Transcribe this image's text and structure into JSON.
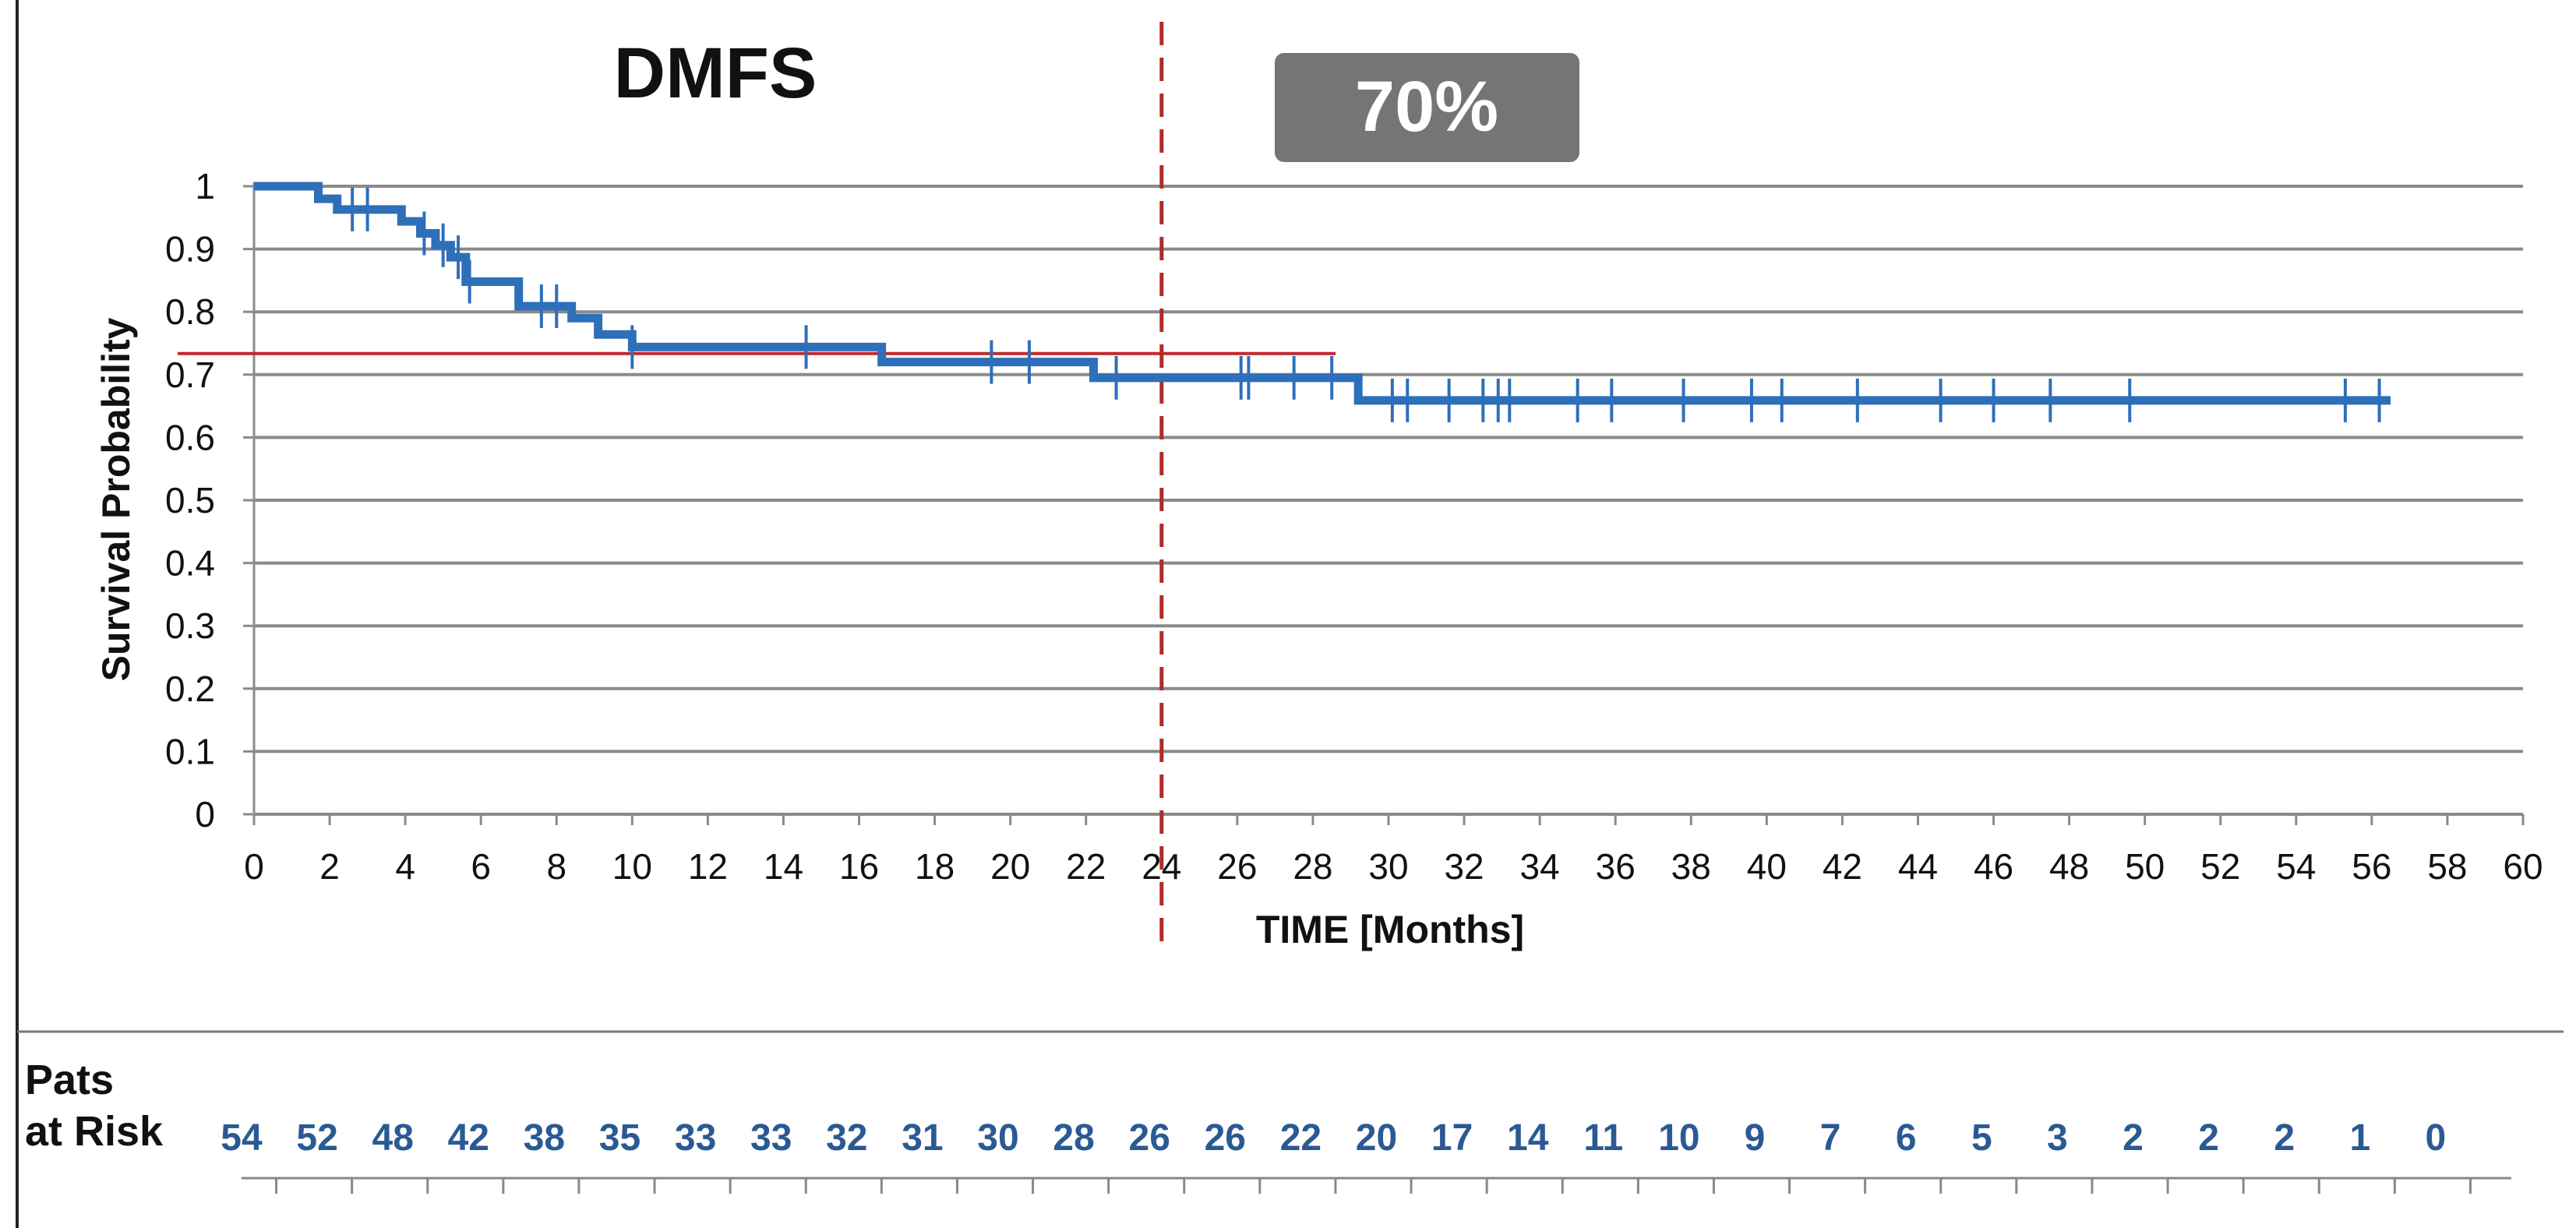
{
  "chart_data": {
    "type": "line",
    "step": true,
    "title": "DMFS",
    "annotation": "70%",
    "xlabel": "TIME [Months]",
    "ylabel": "Survival Probability",
    "xlim": [
      0,
      60
    ],
    "ylim": [
      0,
      1
    ],
    "x_ticks": [
      0,
      2,
      4,
      6,
      8,
      10,
      12,
      14,
      16,
      18,
      20,
      22,
      24,
      26,
      28,
      30,
      32,
      34,
      36,
      38,
      40,
      42,
      44,
      46,
      48,
      50,
      52,
      54,
      56,
      58,
      60
    ],
    "y_ticks": [
      0,
      0.1,
      0.2,
      0.3,
      0.4,
      0.5,
      0.6,
      0.7,
      0.8,
      0.9,
      1
    ],
    "grid": "horizontal",
    "reference_line_y": 0.7,
    "reference_line_x": 24,
    "series": [
      {
        "color": "#2e6fba",
        "x": [
          0,
          1.5,
          1.7,
          2.2,
          3.4,
          3.9,
          4.4,
          4.8,
          5.2,
          5.6,
          6.8,
          7.0,
          8.4,
          9.1,
          10.0,
          16.6,
          22.2,
          29.2,
          56.5
        ],
        "y": [
          1.0,
          1.0,
          0.98,
          0.963,
          0.963,
          0.944,
          0.925,
          0.906,
          0.887,
          0.848,
          0.848,
          0.809,
          0.79,
          0.764,
          0.744,
          0.72,
          0.695,
          0.659,
          0.659
        ],
        "censored_x": [
          2.6,
          3.0,
          4.5,
          5.0,
          5.4,
          5.7,
          7.6,
          8.0,
          10.0,
          14.6,
          19.5,
          20.5,
          22.8,
          26.1,
          26.3,
          27.5,
          28.5,
          30.1,
          30.5,
          31.6,
          32.5,
          32.9,
          33.2,
          35.0,
          35.9,
          37.8,
          39.6,
          40.4,
          42.4,
          44.6,
          46.0,
          47.5,
          49.6,
          55.3,
          56.2
        ]
      }
    ],
    "at_risk": {
      "label_line1": "Pats",
      "label_line2": "at Risk",
      "x": [
        0,
        2,
        4,
        6,
        8,
        10,
        12,
        14,
        16,
        18,
        20,
        22,
        24,
        26,
        28,
        30,
        32,
        34,
        36,
        38,
        40,
        42,
        44,
        46,
        48,
        50,
        52,
        54,
        56,
        58
      ],
      "counts": [
        "54",
        "52",
        "48",
        "42",
        "38",
        "35",
        "33",
        "33",
        "32",
        "31",
        "30",
        "28",
        "26",
        "26",
        "22",
        "20",
        "17",
        "14",
        "11",
        "10",
        "9",
        "7",
        "6",
        "5",
        "3",
        "2",
        "2",
        "2",
        "1",
        "0"
      ]
    }
  }
}
